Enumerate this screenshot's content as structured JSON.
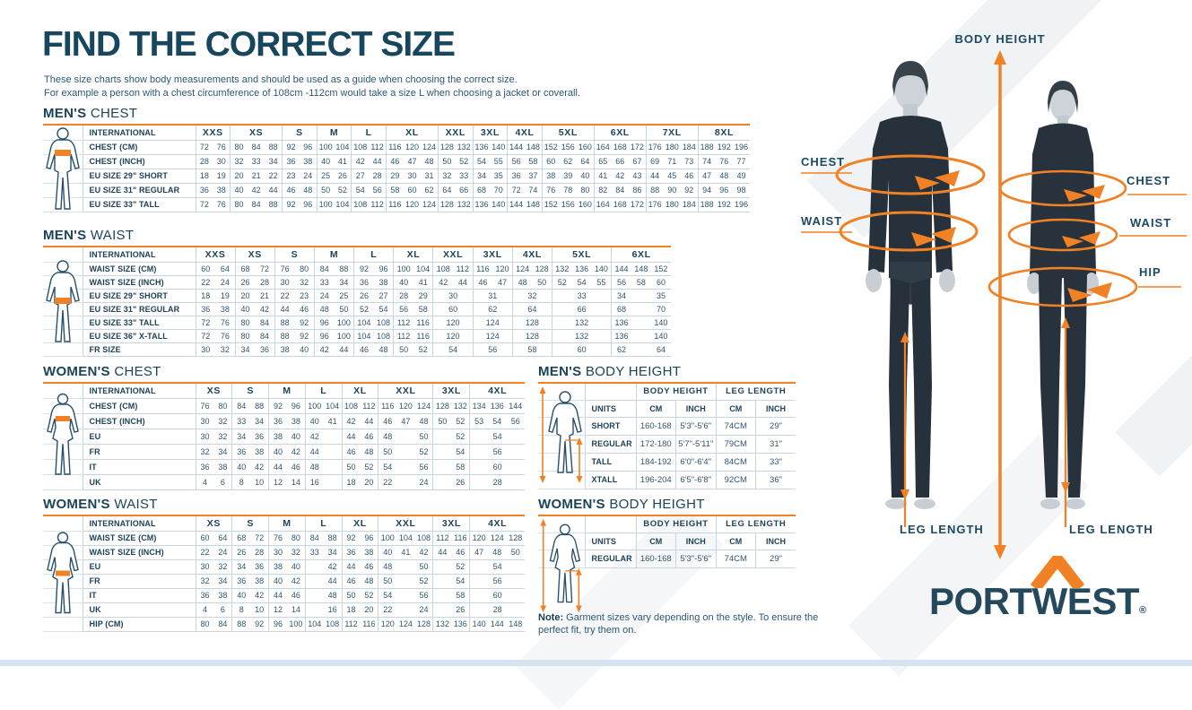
{
  "page": {
    "title": "FIND THE CORRECT SIZE",
    "subtitle_line1": "These size charts show body measurements and should be used as a guide when choosing the correct size.",
    "subtitle_line2": "For example a person with a chest circumference of 108cm -112cm would take a size L when choosing a jacket or coverall.",
    "note_bold": "Note:",
    "note_text": " Garment sizes vary depending on the style. To ensure the perfect fit, try them on."
  },
  "colors": {
    "navy": "#1a4a63",
    "orange": "#f08124",
    "line": "#c7d5e0"
  },
  "size_tables": [
    {
      "id": "mens-chest",
      "title_bold": "MEN'S",
      "title_light": "CHEST",
      "corner": "INTERNATIONAL",
      "figure": "maleChest",
      "groups": [
        {
          "label": "XXS",
          "cols": 2
        },
        {
          "label": "XS",
          "cols": 3
        },
        {
          "label": "S",
          "cols": 2
        },
        {
          "label": "M",
          "cols": 2
        },
        {
          "label": "L",
          "cols": 2
        },
        {
          "label": "XL",
          "cols": 3
        },
        {
          "label": "XXL",
          "cols": 2
        },
        {
          "label": "3XL",
          "cols": 2
        },
        {
          "label": "4XL",
          "cols": 2
        },
        {
          "label": "5XL",
          "cols": 3
        },
        {
          "label": "6XL",
          "cols": 3
        },
        {
          "label": "7XL",
          "cols": 3
        },
        {
          "label": "8XL",
          "cols": 3
        }
      ],
      "rows": [
        {
          "label": "CHEST (CM)",
          "cells": [
            "72",
            "76",
            "80",
            "84",
            "88",
            "92",
            "96",
            "100",
            "104",
            "108",
            "112",
            "116",
            "120",
            "124",
            "128",
            "132",
            "136",
            "140",
            "144",
            "148",
            "152",
            "156",
            "160",
            "164",
            "168",
            "172",
            "176",
            "180",
            "184",
            "188",
            "192",
            "196"
          ]
        },
        {
          "label": "CHEST (INCH)",
          "cells": [
            "28",
            "30",
            "32",
            "33",
            "34",
            "36",
            "38",
            "40",
            "41",
            "42",
            "44",
            "46",
            "47",
            "48",
            "50",
            "52",
            "54",
            "55",
            "56",
            "58",
            "60",
            "62",
            "64",
            "65",
            "66",
            "67",
            "69",
            "71",
            "73",
            "74",
            "76",
            "77"
          ]
        },
        {
          "label": "EU SIZE 29\" SHORT",
          "cells": [
            "18",
            "19",
            "20",
            "21",
            "22",
            "23",
            "24",
            "25",
            "26",
            "27",
            "28",
            "29",
            "30",
            "31",
            "32",
            "33",
            "34",
            "35",
            "36",
            "37",
            "38",
            "39",
            "40",
            "41",
            "42",
            "43",
            "44",
            "45",
            "46",
            "47",
            "48",
            "49"
          ]
        },
        {
          "label": "EU SIZE 31\" REGULAR",
          "cells": [
            "36",
            "38",
            "40",
            "42",
            "44",
            "46",
            "48",
            "50",
            "52",
            "54",
            "56",
            "58",
            "60",
            "62",
            "64",
            "66",
            "68",
            "70",
            "72",
            "74",
            "76",
            "78",
            "80",
            "82",
            "84",
            "86",
            "88",
            "90",
            "92",
            "94",
            "96",
            "98"
          ]
        },
        {
          "label": "EU SIZE 33\" TALL",
          "cells": [
            "72",
            "76",
            "80",
            "84",
            "88",
            "92",
            "96",
            "100",
            "104",
            "108",
            "112",
            "116",
            "120",
            "124",
            "128",
            "132",
            "136",
            "140",
            "144",
            "148",
            "152",
            "156",
            "160",
            "164",
            "168",
            "172",
            "176",
            "180",
            "184",
            "188",
            "192",
            "196"
          ]
        }
      ]
    },
    {
      "id": "mens-waist",
      "title_bold": "MEN'S",
      "title_light": "WAIST",
      "corner": "INTERNATIONAL",
      "figure": "maleWaist",
      "groups": [
        {
          "label": "XXS",
          "cols": 2
        },
        {
          "label": "XS",
          "cols": 2
        },
        {
          "label": "S",
          "cols": 2
        },
        {
          "label": "M",
          "cols": 2
        },
        {
          "label": "L",
          "cols": 2
        },
        {
          "label": "XL",
          "cols": 2
        },
        {
          "label": "XXL",
          "cols": 2
        },
        {
          "label": "3XL",
          "cols": 2
        },
        {
          "label": "4XL",
          "cols": 2
        },
        {
          "label": "5XL",
          "cols": 3
        },
        {
          "label": "6XL",
          "cols": 3
        }
      ],
      "rows": [
        {
          "label": "WAIST SIZE (CM)",
          "cells": [
            "60",
            "64",
            "68",
            "72",
            "76",
            "80",
            "84",
            "88",
            "92",
            "96",
            "100",
            "104",
            "108",
            "112",
            "116",
            "120",
            "124",
            "128",
            "132",
            "136",
            "140",
            "144",
            "148",
            "152"
          ]
        },
        {
          "label": "WAIST SIZE (INCH)",
          "cells": [
            "22",
            "24",
            "26",
            "28",
            "30",
            "32",
            "33",
            "34",
            "36",
            "38",
            "40",
            "41",
            "42",
            "44",
            "46",
            "47",
            "48",
            "50",
            "52",
            "54",
            "55",
            "56",
            "58",
            "60"
          ]
        },
        {
          "label": "EU SIZE 29\" SHORT",
          "cells": [
            "18",
            "19",
            "20",
            "21",
            "22",
            "23",
            "24",
            "25",
            "26",
            "27",
            "28",
            "29",
            [
              "30",
              2
            ],
            [
              "31",
              2
            ],
            [
              "32",
              2
            ],
            [
              "33",
              3
            ],
            "34",
            "",
            "35"
          ]
        },
        {
          "label": "EU SIZE 31\" REGULAR",
          "cells": [
            "36",
            "38",
            "40",
            "42",
            "44",
            "46",
            "48",
            "50",
            "52",
            "54",
            "56",
            "58",
            [
              "60",
              2
            ],
            [
              "62",
              2
            ],
            [
              "64",
              2
            ],
            [
              "66",
              3
            ],
            "68",
            "",
            "70"
          ]
        },
        {
          "label": "EU SIZE 33\" TALL",
          "cells": [
            "72",
            "76",
            "80",
            "84",
            "88",
            "92",
            "96",
            "100",
            "104",
            "108",
            "112",
            "116",
            [
              "120",
              2
            ],
            [
              "124",
              2
            ],
            [
              "128",
              2
            ],
            [
              "132",
              3
            ],
            "136",
            "",
            "140"
          ]
        },
        {
          "label": "EU SIZE 36\" X-TALL",
          "cells": [
            "72",
            "76",
            "80",
            "84",
            "88",
            "92",
            "96",
            "100",
            "104",
            "108",
            "112",
            "116",
            [
              "120",
              2
            ],
            [
              "124",
              2
            ],
            [
              "128",
              2
            ],
            [
              "132",
              3
            ],
            "136",
            "",
            "140"
          ]
        },
        {
          "label": "FR SIZE",
          "cells": [
            "30",
            "32",
            "34",
            "36",
            "38",
            "40",
            "42",
            "44",
            "46",
            "48",
            "50",
            "52",
            [
              "54",
              2
            ],
            [
              "56",
              2
            ],
            [
              "58",
              2
            ],
            [
              "60",
              3
            ],
            "62",
            "",
            "64"
          ]
        }
      ]
    },
    {
      "id": "womens-chest",
      "title_bold": "WOMEN'S",
      "title_light": "CHEST",
      "corner": "INTERNATIONAL",
      "figure": "femaleChest",
      "groups": [
        {
          "label": "XS",
          "cols": 2
        },
        {
          "label": "S",
          "cols": 2
        },
        {
          "label": "M",
          "cols": 2
        },
        {
          "label": "L",
          "cols": 2
        },
        {
          "label": "XL",
          "cols": 2
        },
        {
          "label": "XXL",
          "cols": 3
        },
        {
          "label": "3XL",
          "cols": 2
        },
        {
          "label": "4XL",
          "cols": 3
        }
      ],
      "rows": [
        {
          "label": "CHEST (CM)",
          "cells": [
            "76",
            "80",
            "84",
            "88",
            "92",
            "96",
            "100",
            "104",
            "108",
            "112",
            "116",
            "120",
            "124",
            "128",
            "132",
            "134",
            "136",
            "144"
          ]
        },
        {
          "label": "CHEST (INCH)",
          "cells": [
            "30",
            "32",
            "33",
            "34",
            "36",
            "38",
            "40",
            "41",
            "42",
            "44",
            "46",
            "47",
            "48",
            "50",
            "52",
            "53",
            "54",
            "56"
          ]
        },
        {
          "label": "EU",
          "cells": [
            "30",
            "32",
            "34",
            "36",
            "38",
            "40",
            "42",
            "",
            "44",
            "46",
            "48",
            "",
            "50",
            "",
            "52",
            [
              "54",
              3
            ]
          ]
        },
        {
          "label": "FR",
          "cells": [
            "32",
            "34",
            "36",
            "38",
            "40",
            "42",
            "44",
            "",
            "46",
            "48",
            "50",
            "",
            "52",
            "",
            "54",
            [
              "56",
              3
            ]
          ]
        },
        {
          "label": "IT",
          "cells": [
            "36",
            "38",
            "40",
            "42",
            "44",
            "46",
            "48",
            "",
            "50",
            "52",
            "54",
            "",
            "56",
            "",
            "58",
            [
              "60",
              3
            ]
          ]
        },
        {
          "label": "UK",
          "cells": [
            "4",
            "6",
            "8",
            "10",
            "12",
            "14",
            "16",
            "",
            "18",
            "20",
            "22",
            "",
            "24",
            "",
            "26",
            [
              "28",
              3
            ]
          ]
        }
      ]
    },
    {
      "id": "womens-waist",
      "title_bold": "WOMEN'S",
      "title_light": "WAIST",
      "corner": "INTERNATIONAL",
      "figure": "femaleWaist",
      "groups": [
        {
          "label": "XS",
          "cols": 2
        },
        {
          "label": "S",
          "cols": 2
        },
        {
          "label": "M",
          "cols": 2
        },
        {
          "label": "L",
          "cols": 2
        },
        {
          "label": "XL",
          "cols": 2
        },
        {
          "label": "XXL",
          "cols": 3
        },
        {
          "label": "3XL",
          "cols": 2
        },
        {
          "label": "4XL",
          "cols": 3
        }
      ],
      "rows": [
        {
          "label": "WAIST SIZE (CM)",
          "cells": [
            "60",
            "64",
            "68",
            "72",
            "76",
            "80",
            "84",
            "88",
            "92",
            "96",
            "100",
            "104",
            "108",
            "112",
            "116",
            "120",
            "124",
            "128"
          ]
        },
        {
          "label": "WAIST SIZE (INCH)",
          "cells": [
            "22",
            "24",
            "26",
            "28",
            "30",
            "32",
            "33",
            "34",
            "36",
            "38",
            "40",
            "41",
            "42",
            "44",
            "46",
            "47",
            "48",
            "50"
          ]
        },
        {
          "label": "EU",
          "cells": [
            "30",
            "32",
            "34",
            "36",
            "38",
            "40",
            "",
            "42",
            "44",
            "46",
            "48",
            "",
            "50",
            "",
            "52",
            [
              "54",
              3
            ]
          ]
        },
        {
          "label": "FR",
          "cells": [
            "32",
            "34",
            "36",
            "38",
            "40",
            "42",
            "",
            "44",
            "46",
            "48",
            "50",
            "",
            "52",
            "",
            "54",
            [
              "56",
              3
            ]
          ]
        },
        {
          "label": "IT",
          "cells": [
            "36",
            "38",
            "40",
            "42",
            "44",
            "46",
            "",
            "48",
            "50",
            "52",
            "54",
            "",
            "56",
            "",
            "58",
            [
              "60",
              3
            ]
          ]
        },
        {
          "label": "UK",
          "cells": [
            "4",
            "6",
            "8",
            "10",
            "12",
            "14",
            "",
            "16",
            "18",
            "20",
            "22",
            "",
            "24",
            "",
            "26",
            [
              "28",
              3
            ]
          ]
        },
        {
          "label": "HIP (CM)",
          "cells": [
            "80",
            "84",
            "88",
            "92",
            "96",
            "100",
            "104",
            "108",
            "112",
            "116",
            "120",
            "124",
            "128",
            "132",
            "136",
            "140",
            "144",
            "148"
          ]
        }
      ]
    }
  ],
  "body_tables": [
    {
      "id": "mens-bh",
      "title_bold": "MEN'S",
      "title_light": "BODY HEIGHT",
      "corner": "UNITS",
      "figure": "maleBH",
      "col_groups": [
        "BODY HEIGHT",
        "LEG LENGTH"
      ],
      "units": [
        "CM",
        "INCH",
        "CM",
        "INCH"
      ],
      "rows": [
        {
          "label": "SHORT",
          "cells": [
            "160-168",
            "5'3\"-5'6\"",
            "74CM",
            "29\""
          ]
        },
        {
          "label": "REGULAR",
          "cells": [
            "172-180",
            "5'7\"-5'11\"",
            "79CM",
            "31\""
          ]
        },
        {
          "label": "TALL",
          "cells": [
            "184-192",
            "6'0\"-6'4\"",
            "84CM",
            "33\""
          ]
        },
        {
          "label": "XTALL",
          "cells": [
            "196-204",
            "6'5\"-6'8\"",
            "92CM",
            "36\""
          ]
        }
      ]
    },
    {
      "id": "womens-bh",
      "title_bold": "WOMEN'S",
      "title_light": "BODY HEIGHT",
      "corner": "UNITS",
      "figure": "femaleBH",
      "col_groups": [
        "BODY HEIGHT",
        "LEG LENGTH"
      ],
      "units": [
        "CM",
        "INCH",
        "CM",
        "INCH"
      ],
      "rows": [
        {
          "label": "REGULAR",
          "cells": [
            "160-168",
            "5'3\"-5'6\"",
            "74CM",
            "29\""
          ]
        }
      ]
    }
  ],
  "diagram": {
    "body_height_label": "BODY HEIGHT",
    "chest_label_man": "CHEST",
    "waist_label_man": "WAIST",
    "chest_label_woman": "CHEST",
    "waist_label_woman": "WAIST",
    "hip_label_woman": "HIP",
    "leg_length_left": "LEG LENGTH",
    "leg_length_right": "LEG LENGTH"
  },
  "logo": {
    "text": "PORTWEST",
    "registered": "®"
  }
}
